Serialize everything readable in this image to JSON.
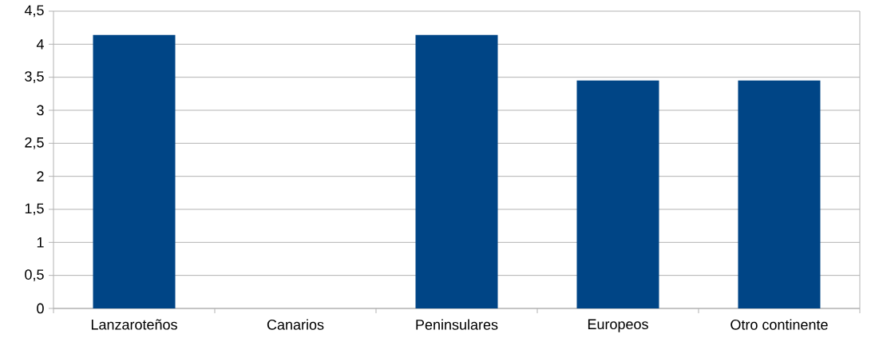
{
  "chart_data": {
    "type": "bar",
    "categories": [
      "Lanzaroteños",
      "Canarios",
      "Peninsulares",
      "Europeos",
      "Otro continente"
    ],
    "values": [
      4.14,
      0,
      4.14,
      3.45,
      3.45
    ],
    "color": "#004586",
    "ylim": [
      0,
      4.5
    ],
    "yticks": [
      0,
      {
        "value": 0.5,
        "label": "0,5"
      },
      1,
      {
        "value": 1.5,
        "label": "1,5"
      },
      2,
      {
        "value": 2.5,
        "label": "2,5"
      },
      3,
      {
        "value": 3.5,
        "label": "3,5"
      },
      4,
      {
        "value": 4.5,
        "label": "4,5"
      }
    ],
    "grid": "y"
  }
}
